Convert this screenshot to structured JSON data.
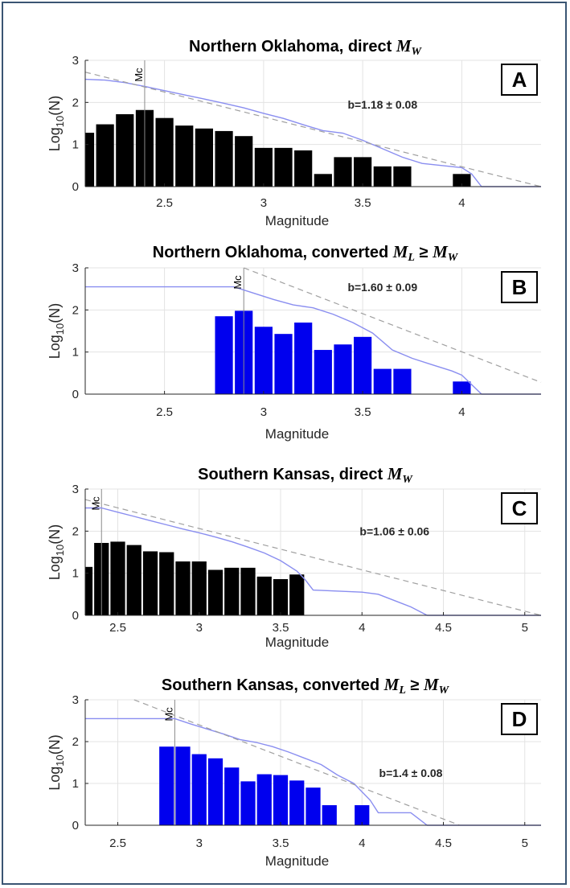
{
  "chart_data": [
    {
      "type": "bar",
      "panel": "A",
      "title": "Northern Oklahoma, direct ",
      "title_math": "M",
      "title_math_sub": "W",
      "title_relation": "",
      "title_math2": "",
      "title_math2_sub": "",
      "xlabel": "Magnitude",
      "ylabel": "Log",
      "ylabel_sub": "10",
      "ylabel_suffix": "(N)",
      "xlim": [
        2.1,
        4.4
      ],
      "ylim": [
        0,
        3
      ],
      "xticks": [
        2.5,
        3,
        3.5,
        4
      ],
      "xtick_labels": [
        "2.5",
        "3",
        "3.5",
        "4"
      ],
      "yticks": [
        0,
        1,
        2,
        3
      ],
      "ytick_labels": [
        "0",
        "1",
        "2",
        "3"
      ],
      "bar_color": "#000000",
      "bar_width": 0.09,
      "bars_x": [
        2.1,
        2.2,
        2.3,
        2.4,
        2.5,
        2.6,
        2.7,
        2.8,
        2.9,
        3.0,
        3.1,
        3.2,
        3.3,
        3.4,
        3.5,
        3.6,
        3.7,
        4.0
      ],
      "bars_y": [
        1.28,
        1.48,
        1.72,
        1.82,
        1.63,
        1.45,
        1.38,
        1.32,
        1.2,
        0.92,
        0.92,
        0.86,
        0.3,
        0.7,
        0.7,
        0.48,
        0.48,
        0.3
      ],
      "cumulative_x": [
        2.1,
        2.2,
        2.3,
        2.4,
        2.5,
        2.6,
        2.7,
        2.8,
        2.9,
        3.0,
        3.1,
        3.2,
        3.3,
        3.4,
        3.5,
        3.6,
        3.7,
        3.8,
        3.9,
        4.0,
        4.05,
        4.1,
        4.2,
        4.4
      ],
      "cumulative_y": [
        2.55,
        2.53,
        2.47,
        2.38,
        2.28,
        2.18,
        2.08,
        1.98,
        1.87,
        1.74,
        1.62,
        1.47,
        1.33,
        1.27,
        1.1,
        0.9,
        0.7,
        0.55,
        0.5,
        0.45,
        0.3,
        0.0,
        0.0,
        0.0
      ],
      "cumulative_color": "#8a8ef0",
      "fit_line_x": [
        2.1,
        4.4
      ],
      "fit_line_y": [
        2.72,
        0.0
      ],
      "mc_value": 2.4,
      "mc_label": "Mc",
      "b_value_text": "b=1.18 ± 0.08",
      "b_value_pos": [
        3.6,
        1.85
      ]
    },
    {
      "type": "bar",
      "panel": "B",
      "title": "Northern Oklahoma, converted ",
      "title_math": "M",
      "title_math_sub": "L",
      "title_relation": " ≥ ",
      "title_math2": "M",
      "title_math2_sub": "W",
      "xlabel": "Magnitude",
      "ylabel": "Log",
      "ylabel_sub": "10",
      "ylabel_suffix": "(N)",
      "xlim": [
        2.1,
        4.4
      ],
      "ylim": [
        0,
        3
      ],
      "xticks": [
        2.5,
        3,
        3.5,
        4
      ],
      "xtick_labels": [
        "2.5",
        "3",
        "3.5",
        "4"
      ],
      "yticks": [
        0,
        1,
        2,
        3
      ],
      "ytick_labels": [
        "0",
        "1",
        "2",
        "3"
      ],
      "bar_color": "#0000ee",
      "bar_width": 0.09,
      "bars_x": [
        2.8,
        2.9,
        3.0,
        3.1,
        3.2,
        3.3,
        3.4,
        3.5,
        3.6,
        3.7,
        4.0
      ],
      "bars_y": [
        1.85,
        1.98,
        1.6,
        1.43,
        1.7,
        1.05,
        1.18,
        1.36,
        0.6,
        0.6,
        0.3
      ],
      "cumulative_x": [
        2.1,
        2.85,
        2.95,
        3.05,
        3.15,
        3.25,
        3.35,
        3.45,
        3.55,
        3.65,
        3.75,
        3.85,
        3.95,
        4.0,
        4.1,
        4.4
      ],
      "cumulative_y": [
        2.55,
        2.55,
        2.4,
        2.25,
        2.12,
        2.05,
        1.9,
        1.7,
        1.45,
        1.05,
        0.85,
        0.7,
        0.55,
        0.45,
        0.0,
        0.0
      ],
      "cumulative_color": "#8a8ef0",
      "fit_line_x": [
        2.9,
        4.4
      ],
      "fit_line_y": [
        3.0,
        0.28
      ],
      "mc_value": 2.9,
      "mc_label": "Mc",
      "b_value_text": "b=1.60 ± 0.09",
      "b_value_pos": [
        3.6,
        2.45
      ]
    },
    {
      "type": "bar",
      "panel": "C",
      "title": "Southern Kansas, direct ",
      "title_math": "M",
      "title_math_sub": "W",
      "title_relation": "",
      "title_math2": "",
      "title_math2_sub": "",
      "xlabel": "Magnitude",
      "ylabel": "Log",
      "ylabel_sub": "10",
      "ylabel_suffix": "(N)",
      "xlim": [
        2.3,
        5.1
      ],
      "ylim": [
        0,
        3
      ],
      "xticks": [
        2.5,
        3,
        3.5,
        4,
        4.5,
        5
      ],
      "xtick_labels": [
        "2.5",
        "3",
        "3.5",
        "4",
        "4.5",
        "5"
      ],
      "yticks": [
        0,
        1,
        2,
        3
      ],
      "ytick_labels": [
        "0",
        "1",
        "2",
        "3"
      ],
      "bar_color": "#000000",
      "bar_width": 0.09,
      "bars_x": [
        2.3,
        2.4,
        2.5,
        2.6,
        2.7,
        2.8,
        2.9,
        3.0,
        3.1,
        3.2,
        3.3,
        3.4,
        3.5,
        3.6
      ],
      "bars_y": [
        1.15,
        1.72,
        1.75,
        1.67,
        1.52,
        1.5,
        1.28,
        1.28,
        1.08,
        1.13,
        1.13,
        0.92,
        0.86,
        0.97
      ],
      "cumulative_x": [
        2.3,
        2.4,
        2.5,
        2.6,
        2.7,
        2.8,
        2.9,
        3.0,
        3.1,
        3.2,
        3.3,
        3.4,
        3.5,
        3.6,
        3.65,
        3.7,
        4.0,
        4.1,
        4.2,
        4.3,
        4.4,
        5.1
      ],
      "cumulative_y": [
        2.55,
        2.55,
        2.45,
        2.35,
        2.25,
        2.15,
        2.05,
        1.96,
        1.86,
        1.75,
        1.62,
        1.48,
        1.3,
        1.05,
        0.85,
        0.6,
        0.55,
        0.5,
        0.35,
        0.2,
        0.0,
        0.0
      ],
      "cumulative_color": "#8a8ef0",
      "fit_line_x": [
        2.3,
        5.1
      ],
      "fit_line_y": [
        2.75,
        0.0
      ],
      "mc_value": 2.4,
      "mc_label": "Mc",
      "b_value_text": "b=1.06 ± 0.06",
      "b_value_pos": [
        4.2,
        1.9
      ]
    },
    {
      "type": "bar",
      "panel": "D",
      "title": "Southern Kansas, converted ",
      "title_math": "M",
      "title_math_sub": "L",
      "title_relation": " ≥ ",
      "title_math2": "M",
      "title_math2_sub": "W",
      "xlabel": "Magnitude",
      "ylabel": "Log",
      "ylabel_sub": "10",
      "ylabel_suffix": "(N)",
      "xlim": [
        2.3,
        5.1
      ],
      "ylim": [
        0,
        3
      ],
      "xticks": [
        2.5,
        3,
        3.5,
        4,
        4.5,
        5
      ],
      "xtick_labels": [
        "2.5",
        "3",
        "3.5",
        "4",
        "4.5",
        "5"
      ],
      "yticks": [
        0,
        1,
        2,
        3
      ],
      "ytick_labels": [
        "0",
        "1",
        "2",
        "3"
      ],
      "bar_color": "#0000ee",
      "bar_width": 0.09,
      "bars_x": [
        2.8,
        2.9,
        3.0,
        3.1,
        3.2,
        3.3,
        3.4,
        3.5,
        3.6,
        3.7,
        3.8,
        4.0
      ],
      "bars_y": [
        1.88,
        1.88,
        1.7,
        1.6,
        1.38,
        1.05,
        1.22,
        1.2,
        1.07,
        0.9,
        0.48,
        0.48
      ],
      "cumulative_x": [
        2.3,
        2.85,
        2.95,
        3.05,
        3.15,
        3.25,
        3.35,
        3.45,
        3.55,
        3.65,
        3.75,
        3.85,
        3.95,
        4.05,
        4.1,
        4.3,
        4.4,
        5.1
      ],
      "cumulative_y": [
        2.55,
        2.55,
        2.42,
        2.3,
        2.18,
        2.05,
        1.98,
        1.88,
        1.75,
        1.6,
        1.45,
        1.2,
        1.0,
        0.6,
        0.3,
        0.3,
        0.0,
        0.0
      ],
      "cumulative_color": "#8a8ef0",
      "fit_line_x": [
        2.6,
        4.6
      ],
      "fit_line_y": [
        3.0,
        0.0
      ],
      "mc_value": 2.85,
      "mc_label": "Mc",
      "b_value_text": "b=1.4 ± 0.08",
      "b_value_pos": [
        4.3,
        1.15
      ]
    }
  ]
}
